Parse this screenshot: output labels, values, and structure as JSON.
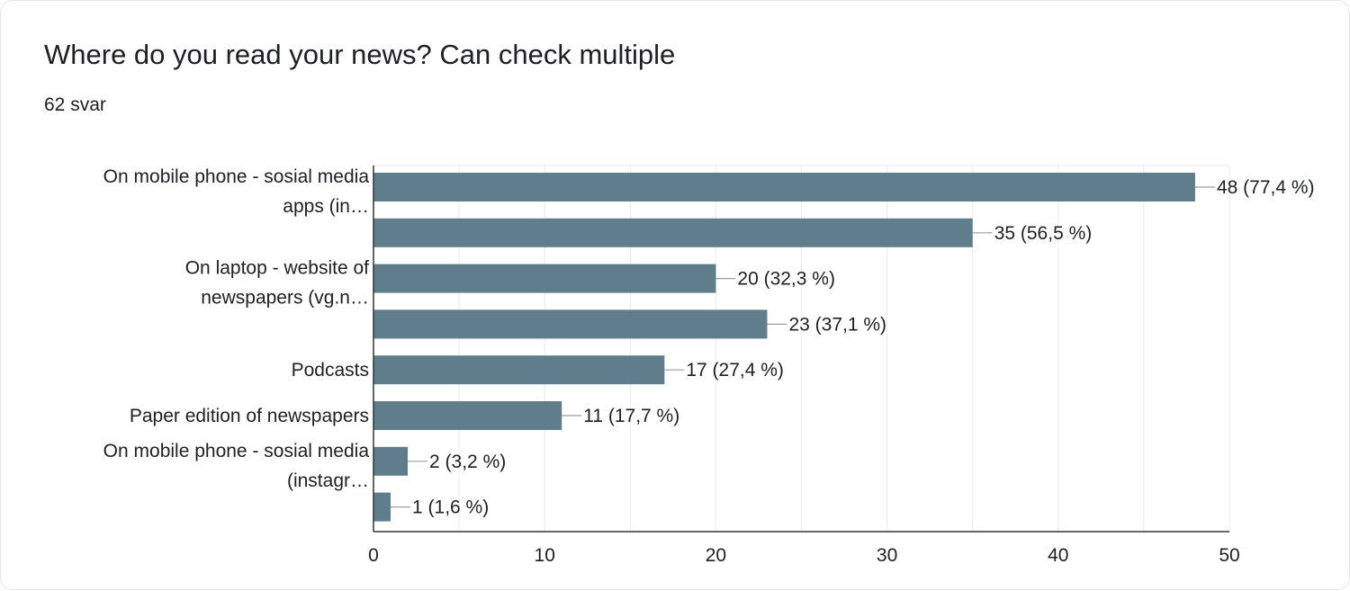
{
  "question": {
    "title": "Where do you read your news? Can check multiple",
    "response_count": "62 svar"
  },
  "colors": {
    "bar": "#607d8b",
    "grid": "#ebebeb",
    "axis": "#333333",
    "text": "#202124",
    "leader": "#9e9e9e"
  },
  "chart_data": {
    "type": "bar",
    "orientation": "horizontal",
    "title": "",
    "xlabel": "",
    "ylabel": "",
    "xlim": [
      0,
      50
    ],
    "x_ticks": [
      0,
      10,
      20,
      30,
      40,
      50
    ],
    "grid": true,
    "categories": [
      [
        "On mobile phone - sosial media",
        "apps (in…"
      ],
      [],
      [
        "On laptop - website of",
        "newspapers (vg.n…"
      ],
      [],
      [
        "Podcasts"
      ],
      [
        "Paper edition of newspapers"
      ],
      [
        "On mobile phone - sosial media",
        "(instagr…"
      ],
      []
    ],
    "values": [
      48,
      35,
      20,
      23,
      17,
      11,
      2,
      1
    ],
    "data_labels": [
      "48 (77,4 %)",
      "35 (56,5 %)",
      "20 (32,3 %)",
      "23 (37,1 %)",
      "17 (27,4 %)",
      "11 (17,7 %)",
      "2 (3,2 %)",
      "1 (1,6 %)"
    ]
  }
}
